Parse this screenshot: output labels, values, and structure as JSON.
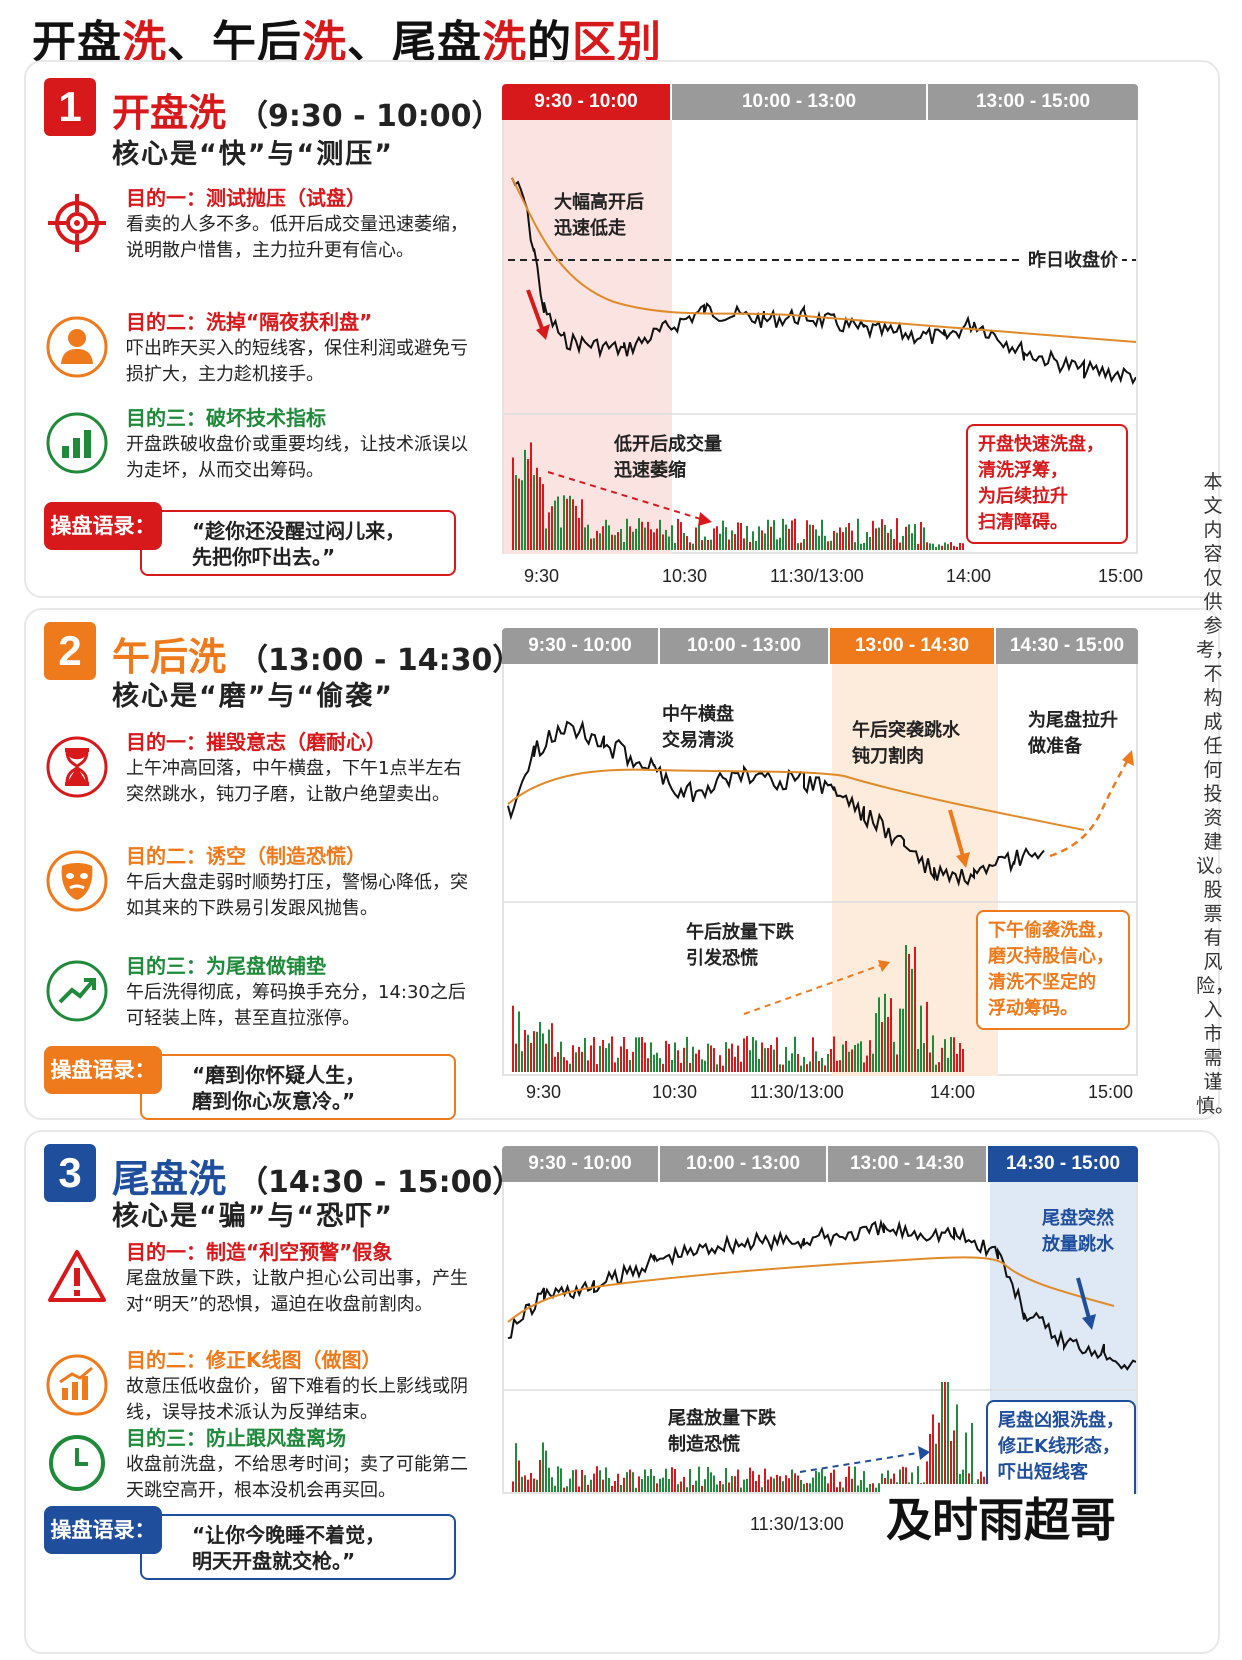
{
  "title": {
    "parts": [
      {
        "text": "开盘",
        "hl": false
      },
      {
        "text": "洗",
        "hl": true
      },
      {
        "text": "、午后",
        "hl": false
      },
      {
        "text": "洗",
        "hl": true
      },
      {
        "text": "、尾盘",
        "hl": false
      },
      {
        "text": "洗",
        "hl": true
      },
      {
        "text": "的",
        "hl": false
      },
      {
        "text": "区别",
        "hl": true
      }
    ]
  },
  "sections": [
    {
      "num": "1",
      "color": "#d7191c",
      "title": "开盘洗",
      "time": "（9:30 - 10:00）",
      "core": "核心是“快”与“测压”",
      "items": [
        {
          "icon": "target-icon",
          "head": "目的一：测试抛压（试盘）",
          "body": "看卖的人多不多。低开后成交量迅速萎缩，说明散户惜售，主力拉升更有信心。"
        },
        {
          "icon": "person-icon",
          "head": "目的二：洗掉“隔夜获利盘”",
          "body": "吓出昨天买入的短线客，保住利润或避免亏损扩大，主力趁机接手。"
        },
        {
          "icon": "bar-chart-icon",
          "head": "目的三：破坏技术指标",
          "body": "开盘跌破收盘价或重要均线，让技术派误以为走坏，从而交出筹码。"
        }
      ],
      "quote_label": "操盘语录：",
      "quote": "“趁你还没醒过闷儿来，\n先把你吓出去。”",
      "tabs": [
        "9:30 - 10:00",
        "10:00 - 13:00",
        "13:00 - 15:00"
      ],
      "active_tab": 0,
      "annotations": [
        "大幅高开后\n迅速低走",
        "昨日收盘价",
        "低开后成交量\n迅速萎缩"
      ],
      "note": "开盘快速洗盘，\n清洗浮筹，\n为后续拉升\n扫清障碍。",
      "xticks": [
        "9:30",
        "10:30",
        "11:30/13:00",
        "14:00",
        "15:00"
      ]
    },
    {
      "num": "2",
      "color": "#ee7a1c",
      "title": "午后洗",
      "time": "（13:00 - 14:30）",
      "core": "核心是“磨”与“偷袭”",
      "items": [
        {
          "icon": "hourglass-icon",
          "head": "目的一：摧毁意志（磨耐心）",
          "body": "上午冲高回落，中午横盘，下午1点半左右突然跳水，钝刀子磨，让散户绝望卖出。"
        },
        {
          "icon": "mask-icon",
          "head": "目的二：诱空（制造恐慌）",
          "body": "午后大盘走弱时顺势打压，警惕心降低，突如其来的下跌易引发跟风抛售。"
        },
        {
          "icon": "trend-up-icon",
          "head": "目的三：为尾盘做铺垫",
          "body": "午后洗得彻底，筹码换手充分，14:30之后可轻装上阵，甚至直拉涨停。"
        }
      ],
      "quote_label": "操盘语录：",
      "quote": "“磨到你怀疑人生，\n磨到你心灰意冷。”",
      "tabs": [
        "9:30 - 10:00",
        "10:00 - 13:00",
        "13:00 - 14:30",
        "14:30 - 15:00"
      ],
      "active_tab": 2,
      "annotations": [
        "中午横盘\n交易清淡",
        "午后突袭跳水\n钝刀割肉",
        "为尾盘拉升\n做准备",
        "午后放量下跌\n引发恐慌"
      ],
      "note": "下午偷袭洗盘，\n磨灭持股信心，\n清洗不坚定的\n浮动筹码。",
      "xticks": [
        "9:30",
        "10:30",
        "11:30/13:00",
        "14:00",
        "15:00"
      ]
    },
    {
      "num": "3",
      "color": "#1f4e9c",
      "title": "尾盘洗",
      "time": "（14:30 - 15:00）",
      "core": "核心是“骗”与“恐吓”",
      "items": [
        {
          "icon": "warning-icon",
          "head": "目的一：制造“利空预警”假象",
          "body": "尾盘放量下跌，让散户担心公司出事，产生对“明天”的恐惧，逼迫在收盘前割肉。"
        },
        {
          "icon": "kline-icon",
          "head": "目的二：修正K线图（做图）",
          "body": "故意压低收盘价，留下难看的长上影线或阴线，误导技术派认为反弹结束。"
        },
        {
          "icon": "clock-icon",
          "head": "目的三：防止跟风盘离场",
          "body": "收盘前洗盘，不给思考时间；卖了可能第二天跳空高开，根本没机会再买回。"
        }
      ],
      "quote_label": "操盘语录：",
      "quote": "“让你今晚睡不着觉，\n明天开盘就交枪。”",
      "tabs": [
        "9:30 - 10:00",
        "10:00 - 13:00",
        "13:00 - 14:30",
        "14:30 - 15:00"
      ],
      "active_tab": 3,
      "annotations": [
        "尾盘突然\n放量跳水",
        "尾盘放量下跌\n制造恐慌"
      ],
      "note": "尾盘凶狠洗盘，\n修正K线形态，\n吓出短线客",
      "xticks": [
        "11:30/13:00"
      ]
    }
  ],
  "side_note": "本文内容仅供参考，不构成任何投资建议。股票有风险，入市需谨慎。",
  "watermark": "及时雨超哥"
}
